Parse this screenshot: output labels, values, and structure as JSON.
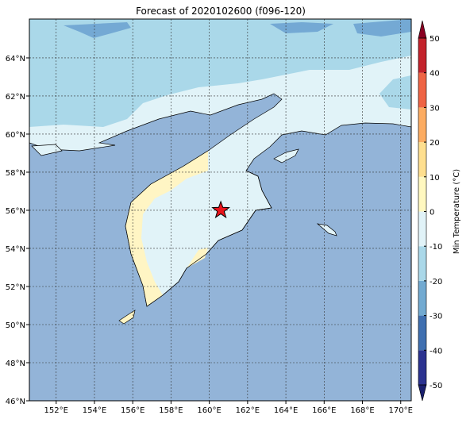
{
  "title": "Forecast of 2020102600 (f096-120)",
  "map": {
    "lon_range": [
      150.6,
      170.55
    ],
    "lat_range": [
      46,
      66.04
    ],
    "xticks": [
      {
        "value": 152,
        "label": "152°E"
      },
      {
        "value": 154,
        "label": "154°E"
      },
      {
        "value": 156,
        "label": "156°E"
      },
      {
        "value": 158,
        "label": "158°E"
      },
      {
        "value": 160,
        "label": "160°E"
      },
      {
        "value": 162,
        "label": "162°E"
      },
      {
        "value": 164,
        "label": "164°E"
      },
      {
        "value": 166,
        "label": "166°E"
      },
      {
        "value": 168,
        "label": "168°E"
      },
      {
        "value": 170,
        "label": "170°E"
      }
    ],
    "yticks": [
      {
        "value": 46,
        "label": "46°N"
      },
      {
        "value": 48,
        "label": "48°N"
      },
      {
        "value": 50,
        "label": "50°N"
      },
      {
        "value": 52,
        "label": "52°N"
      },
      {
        "value": 54,
        "label": "54°N"
      },
      {
        "value": 56,
        "label": "56°N"
      },
      {
        "value": 58,
        "label": "58°N"
      },
      {
        "value": 60,
        "label": "60°N"
      },
      {
        "value": 62,
        "label": "62°N"
      },
      {
        "value": 64,
        "label": "64°N"
      }
    ],
    "grid": true,
    "marker": {
      "lon": 160.6,
      "lat": 56.0,
      "color": "#e8141c"
    }
  },
  "colorbar": {
    "label": "Min Temperature (°C)",
    "lim": [
      -50,
      50
    ],
    "ticks": [
      -50,
      -40,
      -30,
      -20,
      -10,
      0,
      10,
      20,
      30,
      40,
      50
    ],
    "colors": [
      "#2b3290",
      "#3f6fb0",
      "#72aad1",
      "#aad8e9",
      "#e1f3f8",
      "#fff8c0",
      "#fedf8f",
      "#fcac62",
      "#ef6444",
      "#c3222b"
    ],
    "extend_colors": [
      "#1a1f6e",
      "#8a0022"
    ]
  }
}
